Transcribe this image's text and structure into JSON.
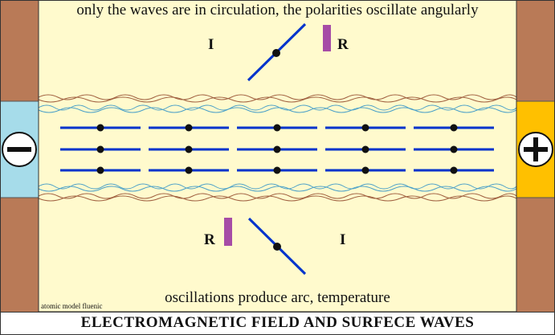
{
  "captions": {
    "top": "only the waves are in circulation, the polarities oscillate angularly",
    "bottom": "oscillations produce arc, temperature",
    "credit": "atomic model fluenic",
    "title": "ELECTROMAGNETIC  FIELD  AND  SURFECE  WAVES"
  },
  "labels": {
    "top_left": "I",
    "top_right": "R",
    "bottom_left": "R",
    "bottom_right": "I"
  },
  "electrodes": {
    "negative": {
      "symbol": "minus-icon",
      "color": "#a6dcea"
    },
    "positive": {
      "symbol": "plus-icon",
      "color": "#ffc000"
    }
  },
  "colors": {
    "frame": "#b97a57",
    "background": "#fffacd",
    "field_lines": "#0033cc",
    "bar": "#a64ca6",
    "brown_wave": "#a06040",
    "blue_wave": "#4aa0c8"
  }
}
